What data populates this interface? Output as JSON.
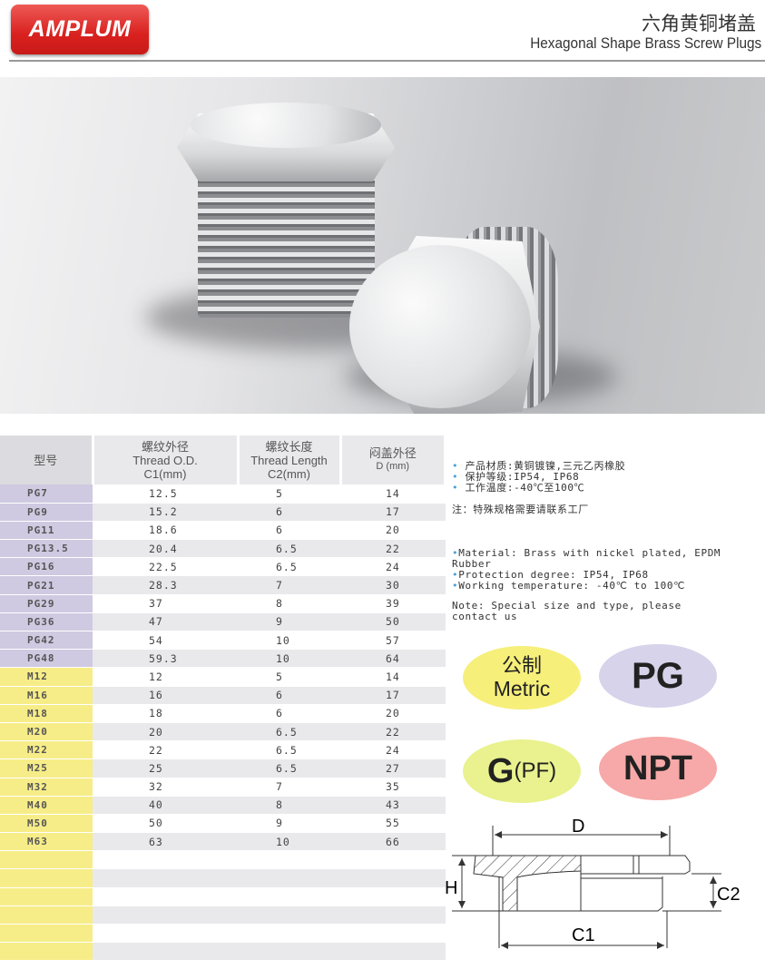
{
  "header": {
    "logo": "AMPLUM",
    "title_cn": "六角黄铜堵盖",
    "title_en": "Hexagonal Shape Brass Screw Plugs"
  },
  "table": {
    "headers": [
      {
        "cn": "型号",
        "en": "",
        "unit": ""
      },
      {
        "cn": "螺纹外径",
        "en": "Thread O.D.",
        "unit": "C1(mm)"
      },
      {
        "cn": "螺纹长度",
        "en": "Thread Length",
        "unit": "C2(mm)"
      },
      {
        "cn": "闷盖外径",
        "en": "",
        "unit": "D (mm)"
      }
    ],
    "rows": [
      [
        "PG7",
        "12.5",
        "5",
        "14"
      ],
      [
        "PG9",
        "15.2",
        "6",
        "17"
      ],
      [
        "PG11",
        "18.6",
        "6",
        "20"
      ],
      [
        "PG13.5",
        "20.4",
        "6.5",
        "22"
      ],
      [
        "PG16",
        "22.5",
        "6.5",
        "24"
      ],
      [
        "PG21",
        "28.3",
        "7",
        "30"
      ],
      [
        "PG29",
        "37",
        "8",
        "39"
      ],
      [
        "PG36",
        "47",
        "9",
        "50"
      ],
      [
        "PG42",
        "54",
        "10",
        "57"
      ],
      [
        "PG48",
        "59.3",
        "10",
        "64"
      ],
      [
        "M12",
        "12",
        "5",
        "14"
      ],
      [
        "M16",
        "16",
        "6",
        "17"
      ],
      [
        "M18",
        "18",
        "6",
        "20"
      ],
      [
        "M20",
        "20",
        "6.5",
        "22"
      ],
      [
        "M22",
        "22",
        "6.5",
        "24"
      ],
      [
        "M25",
        "25",
        "6.5",
        "27"
      ],
      [
        "M32",
        "32",
        "7",
        "35"
      ],
      [
        "M40",
        "40",
        "8",
        "43"
      ],
      [
        "M50",
        "50",
        "9",
        "55"
      ],
      [
        "M63",
        "63",
        "10",
        "66"
      ]
    ]
  },
  "notes": {
    "cn": [
      "产品材质:黄铜镀镍,三元乙丙橡胶",
      "保护等级:IP54, IP68",
      "工作温度:-40℃至100℃"
    ],
    "cn_note": "注：特殊规格需要请联系工厂",
    "en": [
      "Material:  Brass with nickel plated, EPDM Rubber",
      "Protection degree:  IP54, IP68",
      "Working temperature:  -40℃ to 100℃"
    ],
    "en_note": "Note: Special size and type, please contact us"
  },
  "badges": {
    "metric_cn": "公制",
    "metric_en": "Metric",
    "pg": "PG",
    "g": "G",
    "g_sub": "(PF)",
    "npt": "NPT"
  },
  "colors": {
    "metric": "#f6ef7a",
    "pg": "#d6d3ea",
    "g": "#e9f28e",
    "npt": "#f6a9a8",
    "pg_rows": "#cfc9e1",
    "m_rows": "#f7ed88",
    "logo": "#d9211f"
  },
  "diagram": {
    "d": "D",
    "h": "H",
    "c1": "C1",
    "c2": "C2"
  }
}
